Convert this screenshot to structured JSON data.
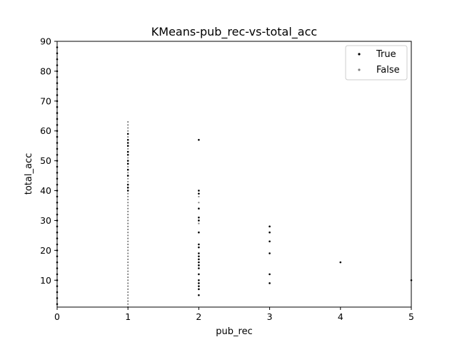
{
  "chart_data": {
    "type": "scatter",
    "title": "KMeans-pub_rec-vs-total_acc",
    "xlabel": "pub_rec",
    "ylabel": "total_acc",
    "xlim": [
      0,
      5
    ],
    "ylim": [
      1,
      90
    ],
    "x_ticks": [
      "0",
      "1",
      "2",
      "3",
      "4",
      "5"
    ],
    "y_ticks": [
      "10",
      "20",
      "30",
      "40",
      "50",
      "60",
      "70",
      "80",
      "90"
    ],
    "x_tick_values": [
      0,
      1,
      2,
      3,
      4,
      5
    ],
    "y_tick_values": [
      10,
      20,
      30,
      40,
      50,
      60,
      70,
      80,
      90
    ],
    "grid": false,
    "legend_position": "top-right",
    "series": [
      {
        "name": "True",
        "color": "#000000",
        "points": [
          [
            0,
            2
          ],
          [
            0,
            4
          ],
          [
            0,
            6
          ],
          [
            0,
            8
          ],
          [
            0,
            10
          ],
          [
            0,
            12
          ],
          [
            0,
            14
          ],
          [
            0,
            16
          ],
          [
            0,
            18
          ],
          [
            0,
            20
          ],
          [
            0,
            22
          ],
          [
            0,
            24
          ],
          [
            0,
            26
          ],
          [
            0,
            28
          ],
          [
            0,
            30
          ],
          [
            0,
            32
          ],
          [
            0,
            34
          ],
          [
            0,
            36
          ],
          [
            0,
            38
          ],
          [
            0,
            40
          ],
          [
            0,
            42
          ],
          [
            0,
            44
          ],
          [
            0,
            46
          ],
          [
            0,
            48
          ],
          [
            0,
            50
          ],
          [
            0,
            52
          ],
          [
            0,
            54
          ],
          [
            0,
            56
          ],
          [
            0,
            58
          ],
          [
            0,
            60
          ],
          [
            0,
            62
          ],
          [
            0,
            64
          ],
          [
            0,
            66
          ],
          [
            0,
            68
          ],
          [
            0,
            70
          ],
          [
            0,
            72
          ],
          [
            0,
            74
          ],
          [
            0,
            76
          ],
          [
            0,
            78
          ],
          [
            0,
            80
          ],
          [
            0,
            82
          ],
          [
            0,
            84
          ],
          [
            0,
            86
          ],
          [
            0,
            88
          ],
          [
            1,
            40
          ],
          [
            1,
            41
          ],
          [
            1,
            42
          ],
          [
            1,
            45
          ],
          [
            1,
            47
          ],
          [
            1,
            49
          ],
          [
            1,
            50
          ],
          [
            1,
            52
          ],
          [
            1,
            53
          ],
          [
            1,
            55
          ],
          [
            1,
            56
          ],
          [
            1,
            57
          ],
          [
            1,
            59
          ],
          [
            2,
            5
          ],
          [
            2,
            7
          ],
          [
            2,
            8
          ],
          [
            2,
            9
          ],
          [
            2,
            10
          ],
          [
            2,
            12
          ],
          [
            2,
            14
          ],
          [
            2,
            15
          ],
          [
            2,
            16
          ],
          [
            2,
            17
          ],
          [
            2,
            18
          ],
          [
            2,
            19
          ],
          [
            2,
            21
          ],
          [
            2,
            22
          ],
          [
            2,
            26
          ],
          [
            2,
            30
          ],
          [
            2,
            31
          ],
          [
            2,
            34
          ],
          [
            2,
            39
          ],
          [
            2,
            40
          ],
          [
            2,
            57
          ],
          [
            3,
            9
          ],
          [
            3,
            12
          ],
          [
            3,
            19
          ],
          [
            3,
            23
          ],
          [
            3,
            26
          ],
          [
            3,
            28
          ],
          [
            4,
            16
          ],
          [
            5,
            10
          ]
        ]
      },
      {
        "name": "False",
        "color": "#808080",
        "points": [
          [
            1,
            1
          ],
          [
            1,
            2
          ],
          [
            1,
            3
          ],
          [
            1,
            4
          ],
          [
            1,
            5
          ],
          [
            1,
            6
          ],
          [
            1,
            7
          ],
          [
            1,
            8
          ],
          [
            1,
            9
          ],
          [
            1,
            10
          ],
          [
            1,
            11
          ],
          [
            1,
            12
          ],
          [
            1,
            13
          ],
          [
            1,
            14
          ],
          [
            1,
            15
          ],
          [
            1,
            16
          ],
          [
            1,
            17
          ],
          [
            1,
            18
          ],
          [
            1,
            19
          ],
          [
            1,
            20
          ],
          [
            1,
            21
          ],
          [
            1,
            22
          ],
          [
            1,
            23
          ],
          [
            1,
            24
          ],
          [
            1,
            25
          ],
          [
            1,
            26
          ],
          [
            1,
            27
          ],
          [
            1,
            28
          ],
          [
            1,
            29
          ],
          [
            1,
            30
          ],
          [
            1,
            31
          ],
          [
            1,
            32
          ],
          [
            1,
            33
          ],
          [
            1,
            34
          ],
          [
            1,
            35
          ],
          [
            1,
            36
          ],
          [
            1,
            37
          ],
          [
            1,
            38
          ],
          [
            1,
            39
          ],
          [
            1,
            43
          ],
          [
            1,
            44
          ],
          [
            1,
            46
          ],
          [
            1,
            48
          ],
          [
            1,
            51
          ],
          [
            1,
            54
          ],
          [
            1,
            58
          ],
          [
            1,
            60
          ],
          [
            1,
            61
          ],
          [
            1,
            62
          ],
          [
            1,
            63
          ],
          [
            2,
            29
          ],
          [
            2,
            36
          ],
          [
            2,
            38
          ]
        ]
      }
    ]
  }
}
